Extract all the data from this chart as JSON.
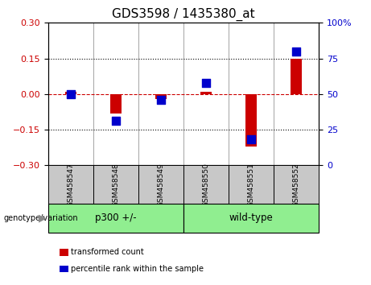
{
  "title": "GDS3598 / 1435380_at",
  "samples": [
    "GSM458547",
    "GSM458548",
    "GSM458549",
    "GSM458550",
    "GSM458551",
    "GSM458552"
  ],
  "red_values": [
    0.01,
    -0.082,
    -0.02,
    0.01,
    -0.22,
    0.15
  ],
  "blue_percentiles": [
    50,
    31,
    46,
    58,
    18,
    80
  ],
  "ylim_left": [
    -0.3,
    0.3
  ],
  "ylim_right": [
    0,
    100
  ],
  "yticks_left": [
    -0.3,
    -0.15,
    0,
    0.15,
    0.3
  ],
  "yticks_right": [
    0,
    25,
    50,
    75,
    100
  ],
  "ytick_labels_right": [
    "0",
    "25",
    "50",
    "75",
    "100%"
  ],
  "hlines_dotted": [
    0.15,
    -0.15
  ],
  "red_color": "#cc0000",
  "blue_color": "#0000cc",
  "dashed_zero_color": "#cc0000",
  "groups": [
    {
      "label": "p300 +/-",
      "indices": [
        0,
        1,
        2
      ],
      "color": "#90ee90"
    },
    {
      "label": "wild-type",
      "indices": [
        3,
        4,
        5
      ],
      "color": "#90ee90"
    }
  ],
  "group_label_prefix": "genotype/variation",
  "legend_items": [
    {
      "label": "  transformed count",
      "color": "#cc0000"
    },
    {
      "label": "  percentile rank within the sample",
      "color": "#0000cc"
    }
  ],
  "bar_width": 0.25,
  "blue_marker_size": 48,
  "title_fontsize": 11,
  "tick_fontsize": 8,
  "label_fontsize": 7.5,
  "background_color": "#ffffff",
  "plot_bg_color": "#ffffff",
  "tick_area_bg": "#c8c8c8",
  "group_area_bg": "#90ee90"
}
